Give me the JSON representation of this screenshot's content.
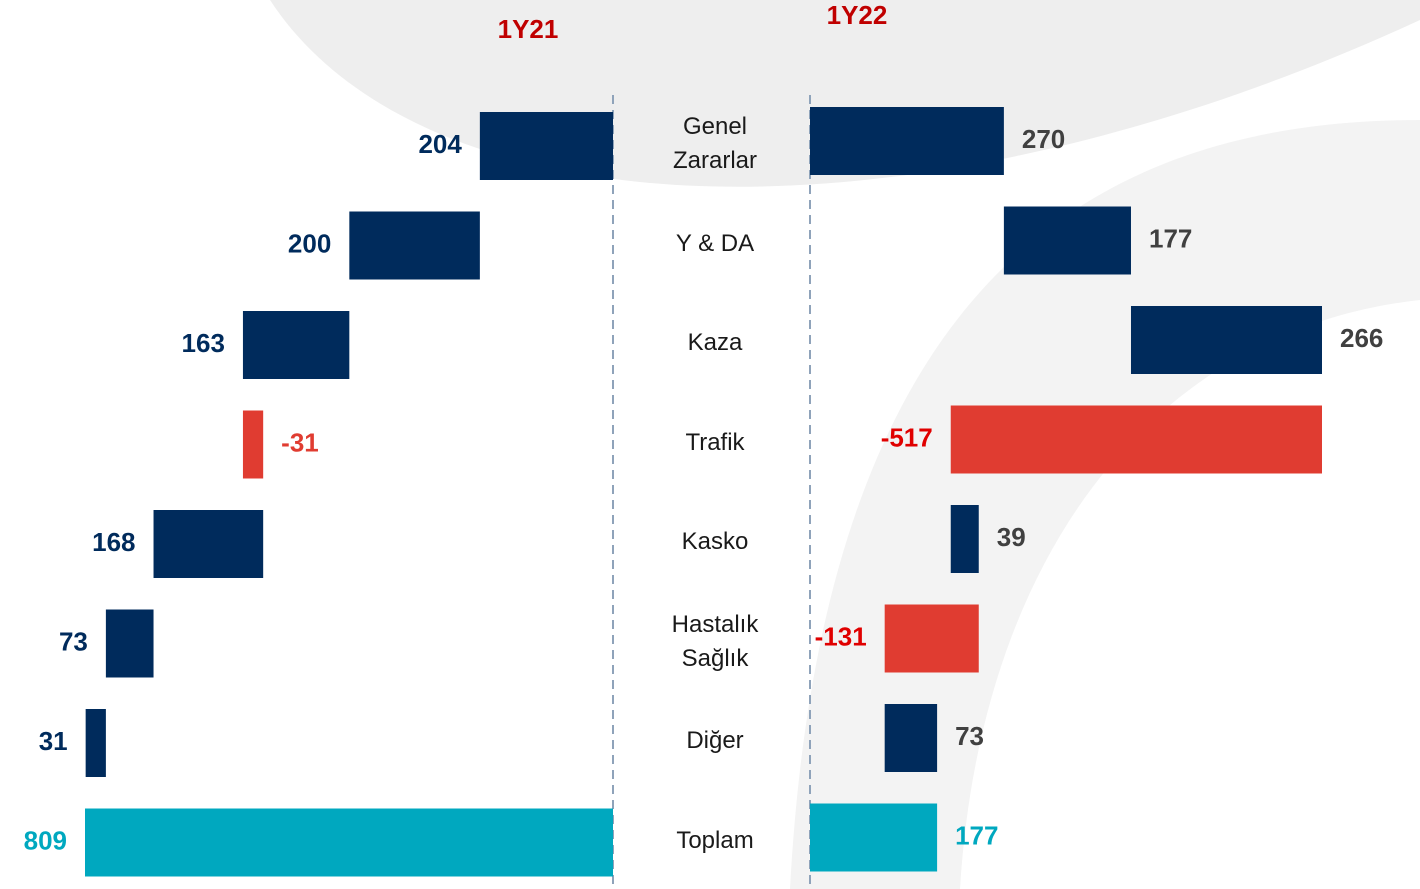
{
  "categories": [
    "Genel Zararlar",
    "Y & DA",
    "Kaza",
    "Trafik",
    "Kasko",
    "Hastalık Sağlık",
    "Diğer",
    "Toplam"
  ],
  "chart_data": [
    {
      "type": "waterfall",
      "title": "1Y21",
      "reversed": true,
      "values": [
        204,
        200,
        163,
        -31,
        168,
        73,
        31,
        809
      ],
      "measure": [
        "relative",
        "relative",
        "relative",
        "relative",
        "relative",
        "relative",
        "relative",
        "total"
      ],
      "colors": {
        "positive": "#002b5c",
        "negative": "#e03c31",
        "total": "#00a8bf"
      },
      "label_colors": {
        "positive": "#002b5c",
        "negative": "#e03c31",
        "total": "#00a8bf"
      },
      "xlim": [
        0,
        809
      ]
    },
    {
      "type": "waterfall",
      "title": "1Y22",
      "reversed": false,
      "values": [
        270,
        177,
        266,
        -517,
        39,
        -131,
        73,
        177
      ],
      "measure": [
        "relative",
        "relative",
        "relative",
        "relative",
        "relative",
        "relative",
        "relative",
        "total"
      ],
      "colors": {
        "positive": "#002b5c",
        "negative": "#e03c31",
        "total": "#00a8bf"
      },
      "label_colors": {
        "positive": "#404040",
        "negative": "#e00000",
        "total": "#00a8bf"
      },
      "xlim": [
        0,
        713
      ]
    }
  ]
}
